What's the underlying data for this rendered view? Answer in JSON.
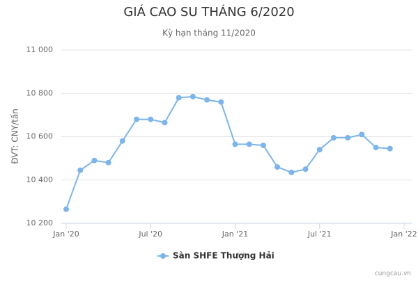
{
  "chart_data": {
    "type": "line",
    "title": "GIÁ CAO SU THÁNG 6/2020",
    "subtitle": "Kỳ hạn tháng 11/2020",
    "y_label": "ĐVT: CNY/tấn",
    "credit": "cungcau.vn",
    "legend": "bottom",
    "grid": true,
    "x": [
      "2020-01",
      "2020-02",
      "2020-03",
      "2020-04",
      "2020-05",
      "2020-06",
      "2020-07",
      "2020-08",
      "2020-09",
      "2020-10",
      "2020-11",
      "2020-12",
      "2021-01",
      "2021-02",
      "2021-03",
      "2021-04",
      "2021-05",
      "2021-06",
      "2021-07",
      "2021-08",
      "2021-09",
      "2021-10",
      "2021-11",
      "2021-12"
    ],
    "series": [
      {
        "name": "Sàn SHFE Thượng Hải",
        "color": "#7cb5ec",
        "values": [
          10265,
          10445,
          10490,
          10480,
          10580,
          10680,
          10680,
          10665,
          10780,
          10785,
          10770,
          10760,
          10565,
          10565,
          10560,
          10460,
          10435,
          10450,
          10540,
          10595,
          10595,
          10610,
          10550,
          10545
        ]
      }
    ],
    "xlim": [
      "2020-01",
      "2022-01"
    ],
    "xticks": [
      {
        "value": "2020-01",
        "label": "Jan '20"
      },
      {
        "value": "2020-07",
        "label": "Jul '20"
      },
      {
        "value": "2021-01",
        "label": "Jan '21"
      },
      {
        "value": "2021-07",
        "label": "Jul '21"
      },
      {
        "value": "2022-01",
        "label": "Jan '22"
      }
    ],
    "ylim": [
      10200,
      11000
    ],
    "yticks": [
      {
        "value": 10200,
        "label": "10 200"
      },
      {
        "value": 10400,
        "label": "10 400"
      },
      {
        "value": 10600,
        "label": "10 600"
      },
      {
        "value": 10800,
        "label": "10 800"
      },
      {
        "value": 11000,
        "label": "11 000"
      }
    ]
  }
}
